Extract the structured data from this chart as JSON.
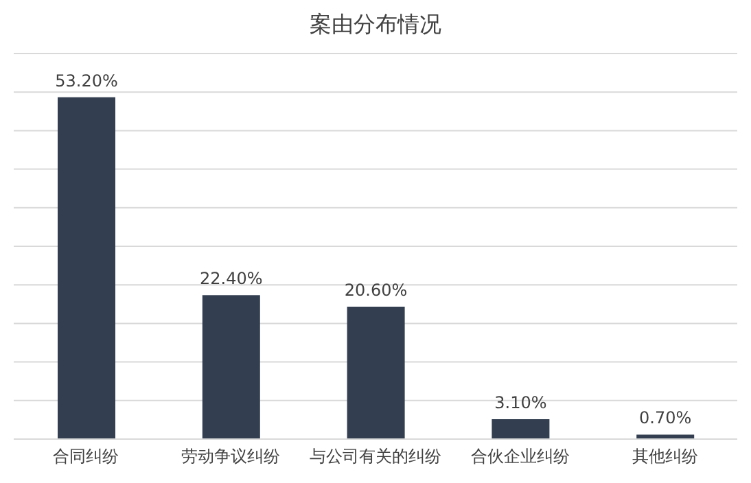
{
  "chart_data": {
    "type": "bar",
    "title": "案由分布情况",
    "categories": [
      "合同纠纷",
      "劳动争议纠纷",
      "与公司有关的纠纷",
      "合伙企业纠纷",
      "其他纠纷"
    ],
    "values": [
      53.2,
      22.4,
      20.6,
      3.1,
      0.7
    ],
    "value_labels": [
      "53.20%",
      "22.40%",
      "20.60%",
      "3.10%",
      "0.70%"
    ],
    "color": "#333f50",
    "ylim": [
      0,
      60
    ],
    "yticks": [
      {
        "value": 0,
        "label": null
      },
      {
        "value": 6,
        "label": null
      },
      {
        "value": 12,
        "label": null
      },
      {
        "value": 18,
        "label": null
      },
      {
        "value": 24,
        "label": null
      },
      {
        "value": 30,
        "label": null
      },
      {
        "value": 36,
        "label": null
      },
      {
        "value": 42,
        "label": null
      },
      {
        "value": 48,
        "label": null
      },
      {
        "value": 54,
        "label": null
      },
      {
        "value": 60,
        "label": null
      }
    ],
    "grid": "y",
    "tick_labels": "x",
    "legend": false
  }
}
